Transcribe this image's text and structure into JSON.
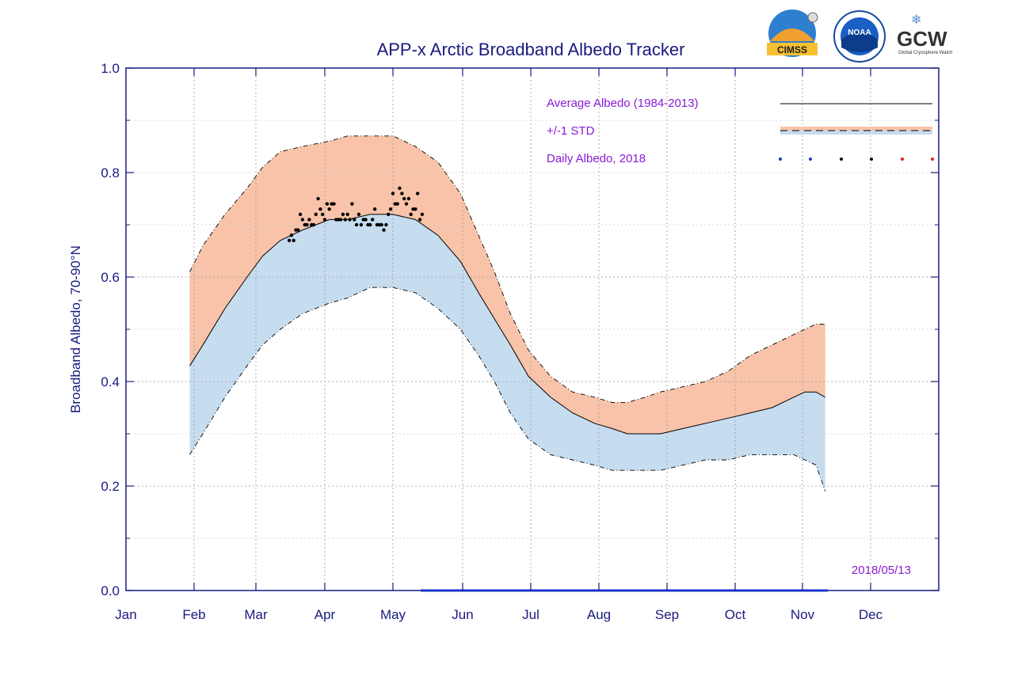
{
  "chart_data": {
    "type": "area",
    "title": "APP-x Arctic Broadband Albedo Tracker",
    "ylabel": "Broadband Albedo, 70-90°N",
    "xlabel": "",
    "ylim": [
      0.0,
      1.0
    ],
    "yticks": [
      "0.0",
      "0.2",
      "0.4",
      "0.6",
      "0.8",
      "1.0"
    ],
    "months": [
      "Jan",
      "Feb",
      "Mar",
      "Apr",
      "May",
      "Jun",
      "Jul",
      "Aug",
      "Sep",
      "Oct",
      "Nov",
      "Dec"
    ],
    "grid": true,
    "legend_position": "top-right",
    "legend": [
      {
        "label": "Average Albedo (1984-2013)",
        "kind": "line",
        "color": "#000000"
      },
      {
        "label": "+/-1 STD",
        "kind": "band",
        "upper_color": "#f8c3a8",
        "lower_color": "#c6dcef"
      },
      {
        "label": "Daily Albedo, 2018",
        "kind": "dots",
        "colors": [
          "#1a33cc",
          "#1a33cc",
          "#000000",
          "#000000",
          "#e02020",
          "#e02020"
        ]
      }
    ],
    "date_stamp": "2018/05/13",
    "x_day": [
      29,
      35,
      45,
      55,
      62,
      70,
      80,
      92,
      100,
      110,
      120,
      130,
      140,
      150,
      158,
      165,
      172,
      180,
      190,
      200,
      210,
      218,
      225,
      233,
      240,
      250,
      260,
      270,
      280,
      290,
      300,
      305,
      310,
      314
    ],
    "series": [
      {
        "name": "Average Albedo (1984-2013)",
        "values": [
          0.43,
          0.47,
          0.54,
          0.6,
          0.64,
          0.67,
          0.69,
          0.71,
          0.71,
          0.72,
          0.72,
          0.71,
          0.68,
          0.63,
          0.57,
          0.52,
          0.47,
          0.41,
          0.37,
          0.34,
          0.32,
          0.31,
          0.3,
          0.3,
          0.3,
          0.31,
          0.32,
          0.33,
          0.34,
          0.35,
          0.37,
          0.38,
          0.38,
          0.37
        ]
      },
      {
        "name": "+1 STD",
        "values": [
          0.61,
          0.66,
          0.72,
          0.77,
          0.81,
          0.84,
          0.85,
          0.86,
          0.87,
          0.87,
          0.87,
          0.85,
          0.82,
          0.76,
          0.68,
          0.61,
          0.53,
          0.46,
          0.41,
          0.38,
          0.37,
          0.36,
          0.36,
          0.37,
          0.38,
          0.39,
          0.4,
          0.42,
          0.45,
          0.47,
          0.49,
          0.5,
          0.51,
          0.51
        ]
      },
      {
        "name": "-1 STD",
        "values": [
          0.26,
          0.3,
          0.37,
          0.43,
          0.47,
          0.5,
          0.53,
          0.55,
          0.56,
          0.58,
          0.58,
          0.57,
          0.54,
          0.5,
          0.45,
          0.4,
          0.34,
          0.29,
          0.26,
          0.25,
          0.24,
          0.23,
          0.23,
          0.23,
          0.23,
          0.24,
          0.25,
          0.25,
          0.26,
          0.26,
          0.26,
          0.25,
          0.24,
          0.19
        ]
      }
    ],
    "daily_2018": {
      "name": "Daily Albedo, 2018",
      "day": [
        74,
        75,
        76,
        77,
        78,
        79,
        80,
        81,
        82,
        83,
        84,
        85,
        86,
        87,
        88,
        89,
        90,
        91,
        92,
        93,
        94,
        95,
        96,
        97,
        98,
        99,
        100,
        101,
        102,
        103,
        104,
        105,
        106,
        107,
        108,
        109,
        110,
        111,
        112,
        113,
        114,
        115,
        116,
        117,
        118,
        119,
        120,
        121,
        122,
        123,
        124,
        125,
        126,
        127,
        128,
        129,
        130,
        131,
        132,
        133
      ],
      "values": [
        0.67,
        0.68,
        0.67,
        0.69,
        0.69,
        0.72,
        0.71,
        0.7,
        0.7,
        0.71,
        0.7,
        0.7,
        0.72,
        0.75,
        0.73,
        0.72,
        0.71,
        0.74,
        0.73,
        0.74,
        0.74,
        0.71,
        0.71,
        0.71,
        0.72,
        0.71,
        0.72,
        0.71,
        0.74,
        0.71,
        0.7,
        0.72,
        0.7,
        0.71,
        0.71,
        0.7,
        0.7,
        0.71,
        0.73,
        0.7,
        0.7,
        0.7,
        0.69,
        0.7,
        0.72,
        0.73,
        0.76,
        0.74,
        0.74,
        0.77,
        0.76,
        0.75,
        0.74,
        0.75,
        0.72,
        0.73,
        0.73,
        0.76,
        0.71,
        0.72
      ]
    }
  },
  "logos": {
    "cimss": "CIMSS",
    "noaa": "NOAA",
    "gcw": "GCW",
    "gcw_sub": "Global Cryosphere Watch"
  }
}
